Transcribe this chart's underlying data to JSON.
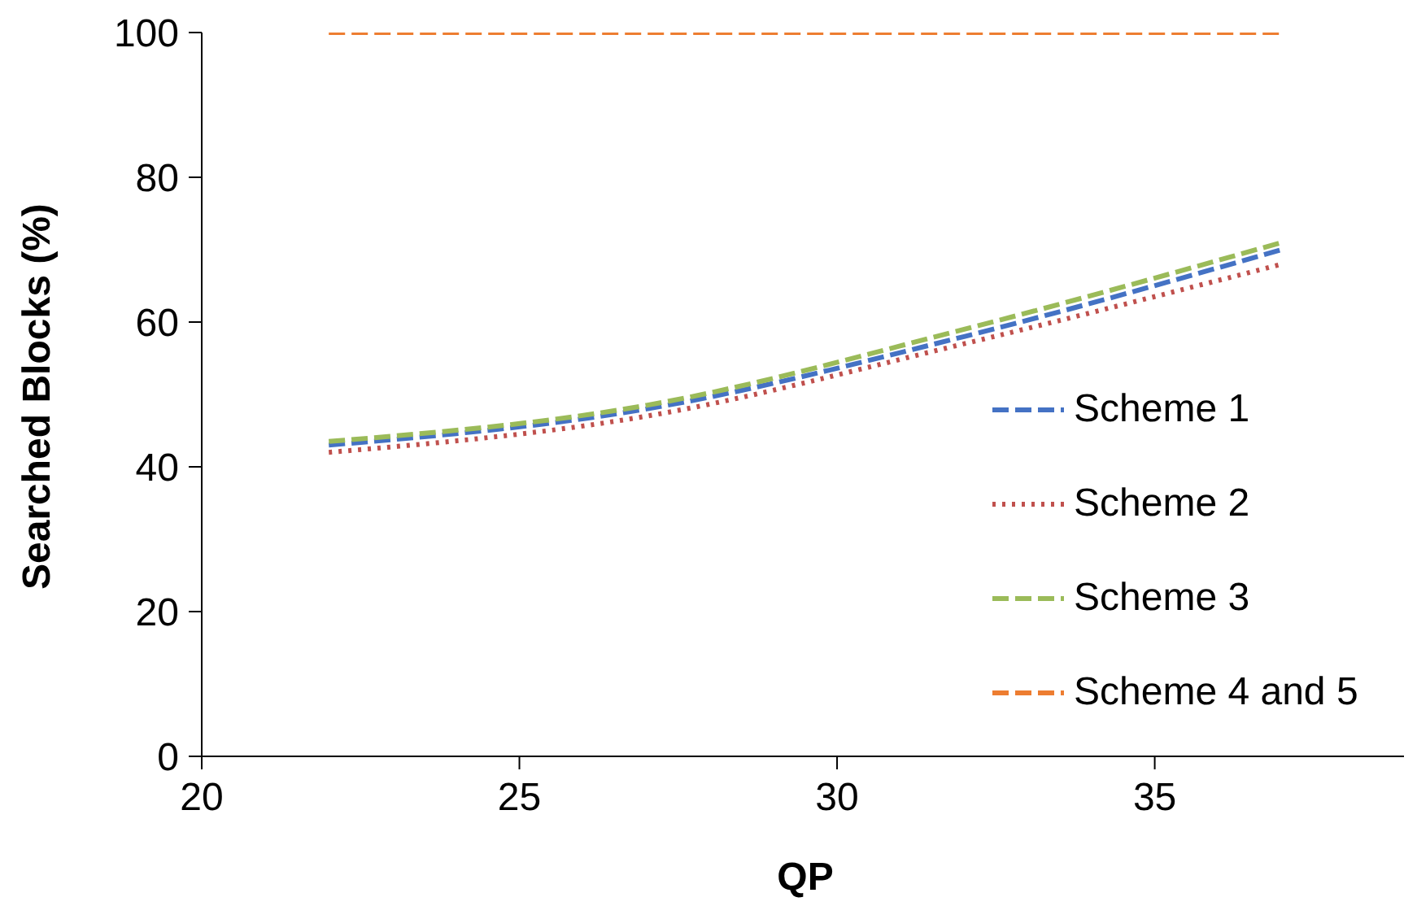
{
  "chart_data": {
    "type": "line",
    "xlabel": "QP",
    "ylabel": "Searched Blocks (%)",
    "x": [
      22,
      27,
      32,
      37
    ],
    "xlim": [
      20,
      39
    ],
    "xticks": [
      20,
      25,
      30,
      35
    ],
    "ylim": [
      0,
      100
    ],
    "yticks": [
      0,
      20,
      40,
      60,
      80,
      100
    ],
    "grid": false,
    "legend": "right",
    "marker": "none",
    "series": [
      {
        "name": "Scheme 1",
        "color": "#4472c4",
        "line_style": "dashed",
        "values": [
          43,
          48,
          58,
          70
        ]
      },
      {
        "name": "Scheme 2",
        "color": "#c0504d",
        "line_style": "dotted",
        "values": [
          42,
          47,
          57,
          68
        ]
      },
      {
        "name": "Scheme 3",
        "color": "#9bbb59",
        "line_style": "dashed",
        "values": [
          43.5,
          48.5,
          59,
          71
        ]
      },
      {
        "name": "Scheme 4 and 5",
        "color": "#ed7d31",
        "line_style": "dashed",
        "values": [
          100,
          100,
          100,
          100
        ]
      }
    ]
  }
}
